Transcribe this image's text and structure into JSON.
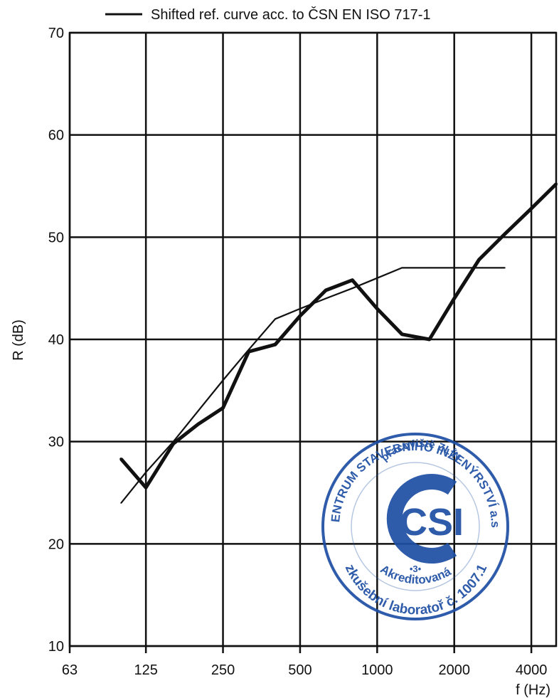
{
  "chart_data": {
    "type": "line",
    "title": "",
    "xlabel": "f (Hz)",
    "ylabel": "R (dB)",
    "x_scale": "log",
    "xlim": [
      63,
      5000
    ],
    "ylim": [
      10,
      70
    ],
    "x_ticks": [
      63,
      125,
      250,
      500,
      1000,
      2000,
      4000
    ],
    "x_tick_labels": [
      "63",
      "125",
      "250",
      "500",
      "1000",
      "2000",
      "4000"
    ],
    "y_ticks": [
      10,
      20,
      30,
      40,
      50,
      60,
      70
    ],
    "y_tick_labels": [
      "10",
      "20",
      "30",
      "40",
      "50",
      "60",
      "70"
    ],
    "grid": true,
    "legend_position": "top",
    "series": [
      {
        "name": "",
        "style": "thick",
        "color": "#111111",
        "x": [
          100,
          125,
          160,
          200,
          250,
          315,
          400,
          500,
          630,
          800,
          1000,
          1250,
          1600,
          2000,
          2500,
          3150,
          4000,
          5000
        ],
        "y": [
          28.3,
          25.5,
          29.8,
          31.7,
          33.3,
          38.8,
          39.5,
          42.3,
          44.8,
          45.8,
          43.0,
          40.5,
          40.0,
          44.0,
          47.8,
          50.3,
          52.8,
          55.2
        ]
      },
      {
        "name": "Shifted ref. curve acc. to ČSN EN ISO 717-1",
        "style": "thin",
        "color": "#111111",
        "x": [
          100,
          125,
          160,
          200,
          250,
          315,
          400,
          500,
          630,
          800,
          1000,
          1250,
          1600,
          2000,
          2500,
          3150
        ],
        "y": [
          24,
          27,
          30,
          33,
          36,
          39,
          42,
          43,
          44,
          45,
          46,
          47,
          47,
          47,
          47,
          47
        ]
      }
    ]
  },
  "stamp": {
    "top_text": "CENTRUM STAVEBNÍHO INŽENÝRSTVÍ a.s.",
    "inner_text": "pracoviště ZLÍN",
    "logo_text": "CSI",
    "number_text": "•3•",
    "middle_text": "Akreditovaná",
    "bottom_text": "zkušební laboratoř č. 1007.1",
    "color": "#1e4fa3"
  }
}
